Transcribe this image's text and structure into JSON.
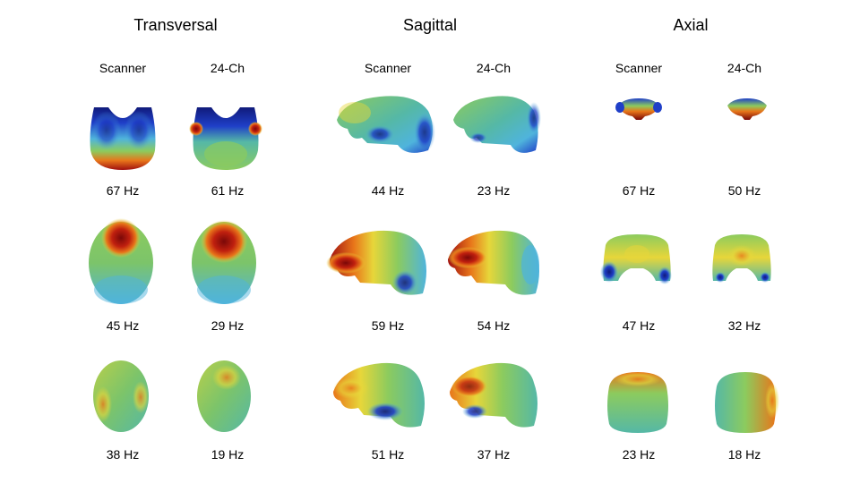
{
  "panels": [
    {
      "title": "Transversal",
      "columns": [
        "Scanner",
        "24-Ch"
      ],
      "rows": [
        [
          "67 Hz",
          "61 Hz"
        ],
        [
          "45 Hz",
          "29 Hz"
        ],
        [
          "38 Hz",
          "19 Hz"
        ]
      ]
    },
    {
      "title": "Sagittal",
      "columns": [
        "Scanner",
        "24-Ch"
      ],
      "rows": [
        [
          "44 Hz",
          "23 Hz"
        ],
        [
          "59 Hz",
          "54 Hz"
        ],
        [
          "51 Hz",
          "37 Hz"
        ]
      ]
    },
    {
      "title": "Axial",
      "columns": [
        "Scanner",
        "24-Ch"
      ],
      "rows": [
        [
          "67 Hz",
          "50 Hz"
        ],
        [
          "47 Hz",
          "32 Hz"
        ],
        [
          "23 Hz",
          "18 Hz"
        ]
      ]
    }
  ],
  "colors": {
    "red": "#a01010",
    "orange": "#e8761a",
    "yellow": "#e7d63a",
    "green": "#8ccb5e",
    "teal": "#55b8a6",
    "cyan": "#4fb4dc",
    "blue": "#1f3fc8",
    "navy": "#101a7a"
  }
}
